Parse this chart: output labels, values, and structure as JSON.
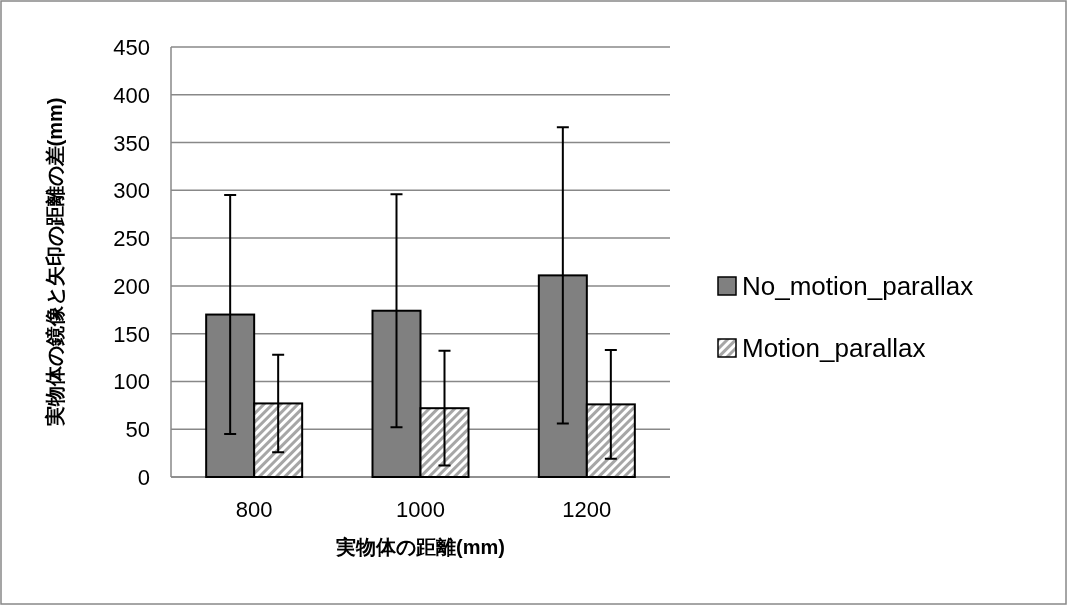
{
  "chart_data": {
    "type": "bar",
    "xlabel": "実物体の距離(mm)",
    "ylabel": "実物体の鏡像と矢印の距離の差(mm)",
    "categories": [
      "800",
      "1000",
      "1200"
    ],
    "series": [
      {
        "name": "No_motion_parallax",
        "color": "#808080",
        "values": [
          170,
          174,
          211
        ],
        "errors": [
          125,
          122,
          155
        ]
      },
      {
        "name": "Motion_parallax",
        "color": "#a6a6a6",
        "values": [
          77,
          72,
          76
        ],
        "errors": [
          51,
          60,
          57
        ]
      }
    ],
    "ylim": [
      0,
      450
    ],
    "yticks": [
      0,
      50,
      100,
      150,
      200,
      250,
      300,
      350,
      400,
      450
    ],
    "grid": "y",
    "legend": "right"
  }
}
